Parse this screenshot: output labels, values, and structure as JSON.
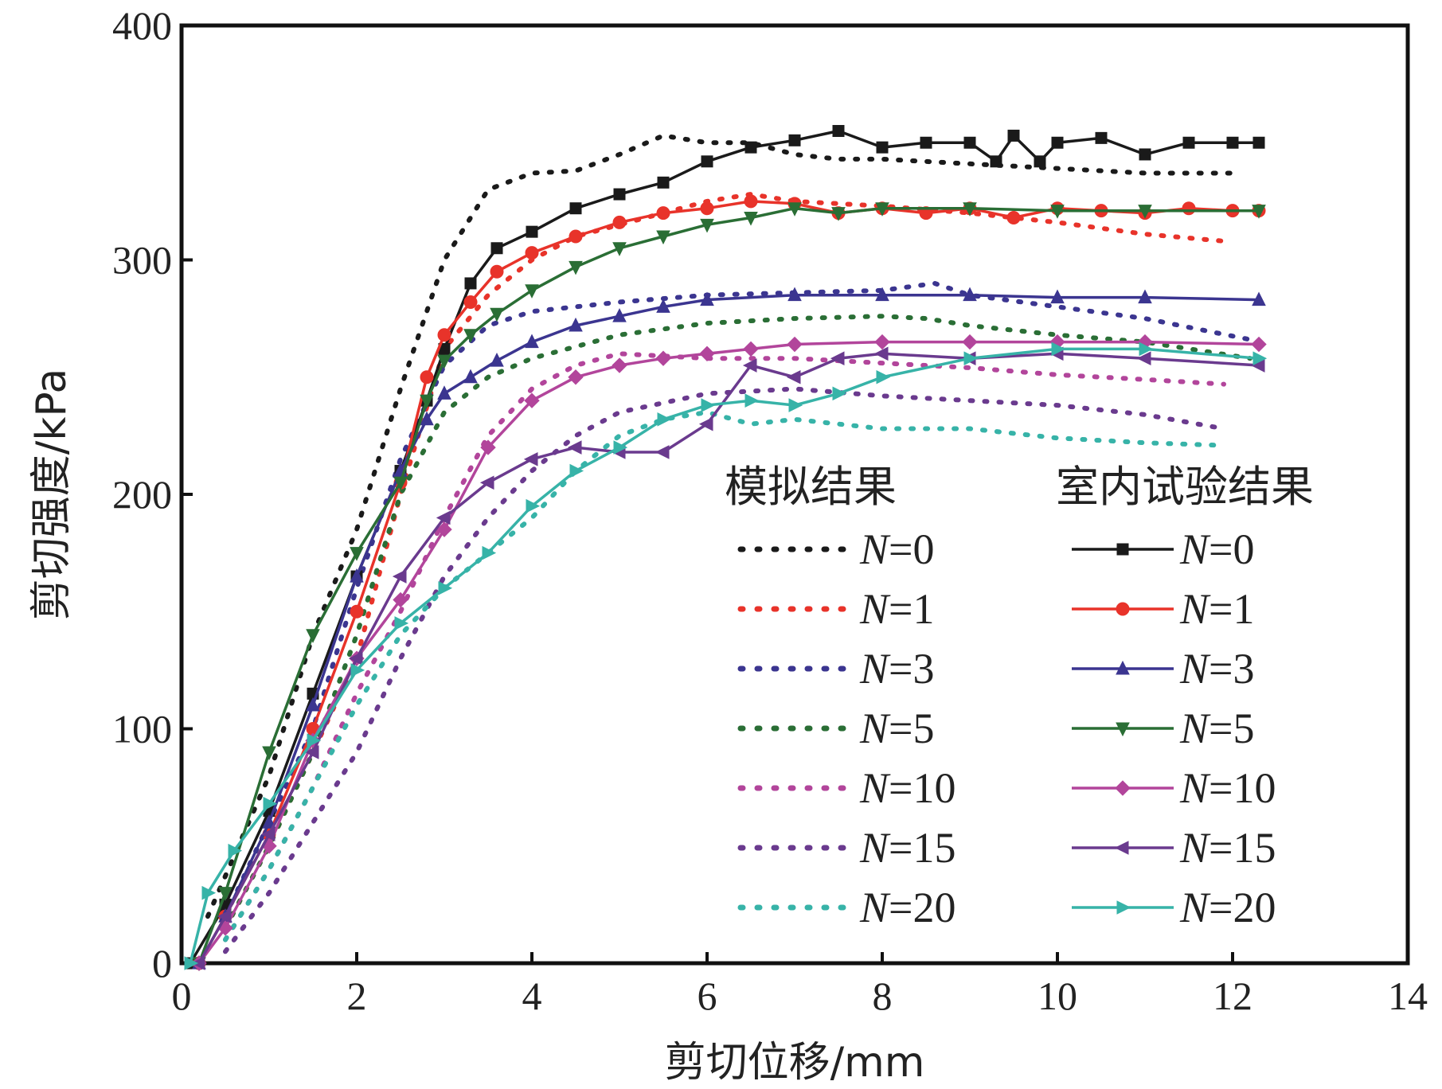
{
  "chart_data": {
    "type": "line",
    "title": "",
    "xlabel": "剪切位移/mm",
    "ylabel": "剪切强度/kPa",
    "xlim": [
      0,
      14
    ],
    "ylim": [
      0,
      400
    ],
    "xticks": [
      "0",
      "2",
      "4",
      "6",
      "8",
      "10",
      "12",
      "14"
    ],
    "yticks": [
      "0",
      "100",
      "200",
      "300",
      "400"
    ],
    "grid": false,
    "legend": {
      "position": "bottom-right",
      "sim_header": "模拟结果",
      "exp_header": "室内试验结果"
    },
    "colors": {
      "N=0": "#1a1a1a",
      "N=1": "#e8332a",
      "N=3": "#3b3590",
      "N=5": "#2a6e35",
      "N=10": "#b2459b",
      "N=15": "#6a3a8e",
      "N=20": "#37b3a8"
    },
    "series": [
      {
        "name": "N=0",
        "kind": "simulation",
        "marker": "none",
        "x": [
          0.3,
          1.0,
          1.5,
          2.0,
          2.5,
          3.0,
          3.5,
          4.0,
          4.5,
          5.0,
          5.5,
          6.0,
          6.5,
          7.0,
          7.5,
          8.0,
          9.0,
          10.0,
          11.0,
          12.0
        ],
        "y": [
          20,
          80,
          140,
          185,
          245,
          300,
          330,
          337,
          338,
          345,
          353,
          350,
          350,
          345,
          343,
          343,
          341,
          339,
          337,
          337
        ]
      },
      {
        "name": "N=1",
        "kind": "simulation",
        "marker": "none",
        "x": [
          0.5,
          1.0,
          1.5,
          2.0,
          2.5,
          3.0,
          3.5,
          4.0,
          4.5,
          5.0,
          5.5,
          6.0,
          6.5,
          7.0,
          8.0,
          9.0,
          10.0,
          11.0,
          11.9
        ],
        "y": [
          15,
          50,
          90,
          130,
          200,
          262,
          285,
          300,
          310,
          315,
          320,
          325,
          328,
          325,
          323,
          320,
          316,
          311,
          308
        ]
      },
      {
        "name": "N=3",
        "kind": "simulation",
        "marker": "none",
        "x": [
          0.5,
          1.0,
          1.5,
          2.0,
          2.5,
          3.0,
          3.5,
          4.0,
          5.0,
          6.0,
          7.0,
          8.0,
          8.6,
          9.0,
          10.0,
          11.0,
          12.2
        ],
        "y": [
          20,
          60,
          100,
          160,
          215,
          255,
          272,
          278,
          282,
          285,
          286,
          287,
          290,
          285,
          280,
          275,
          266
        ]
      },
      {
        "name": "N=5",
        "kind": "simulation",
        "marker": "none",
        "x": [
          0.5,
          1.0,
          1.5,
          2.0,
          2.5,
          3.0,
          3.5,
          4.0,
          5.0,
          6.0,
          7.0,
          8.0,
          8.5,
          9.0,
          10.0,
          11.0,
          12.2
        ],
        "y": [
          15,
          50,
          90,
          140,
          200,
          235,
          250,
          258,
          268,
          273,
          275,
          276,
          275,
          272,
          268,
          265,
          258
        ]
      },
      {
        "name": "N=10",
        "kind": "simulation",
        "marker": "none",
        "x": [
          0.5,
          1.0,
          1.5,
          2.0,
          2.5,
          3.0,
          3.5,
          4.0,
          4.5,
          5.0,
          6.0,
          7.0,
          8.0,
          9.0,
          10.0,
          11.0,
          11.9
        ],
        "y": [
          10,
          40,
          75,
          115,
          150,
          190,
          225,
          245,
          255,
          260,
          258,
          258,
          256,
          254,
          251,
          249,
          247
        ]
      },
      {
        "name": "N=15",
        "kind": "simulation",
        "marker": "none",
        "x": [
          0.5,
          1.0,
          1.5,
          2.0,
          2.5,
          3.0,
          3.5,
          4.0,
          4.5,
          5.0,
          6.0,
          7.0,
          8.0,
          9.0,
          10.0,
          11.0,
          11.9
        ],
        "y": [
          5,
          30,
          60,
          90,
          130,
          165,
          190,
          210,
          225,
          235,
          243,
          245,
          242,
          240,
          238,
          234,
          228
        ]
      },
      {
        "name": "N=20",
        "kind": "simulation",
        "marker": "none",
        "x": [
          0.5,
          1.0,
          1.5,
          2.0,
          2.5,
          3.0,
          3.5,
          4.0,
          4.5,
          5.0,
          5.5,
          6.0,
          6.5,
          7.0,
          8.0,
          9.0,
          10.0,
          11.0,
          11.8
        ],
        "y": [
          10,
          40,
          75,
          110,
          140,
          160,
          175,
          190,
          210,
          225,
          232,
          235,
          230,
          232,
          228,
          228,
          224,
          222,
          221
        ]
      },
      {
        "name": "N=0",
        "kind": "experiment",
        "marker": "square",
        "x": [
          0.1,
          0.5,
          1.0,
          1.5,
          2.0,
          2.5,
          2.8,
          3.0,
          3.3,
          3.6,
          4.0,
          4.5,
          5.0,
          5.5,
          6.0,
          6.5,
          7.0,
          7.5,
          8.0,
          8.5,
          9.0,
          9.3,
          9.5,
          9.8,
          10.0,
          10.5,
          11.0,
          11.5,
          12.0,
          12.3
        ],
        "y": [
          0,
          25,
          65,
          115,
          165,
          210,
          240,
          262,
          290,
          305,
          312,
          322,
          328,
          333,
          342,
          348,
          351,
          355,
          348,
          350,
          350,
          342,
          353,
          342,
          350,
          352,
          345,
          350,
          350,
          350
        ]
      },
      {
        "name": "N=1",
        "kind": "experiment",
        "marker": "circle",
        "x": [
          0.2,
          0.5,
          1.0,
          1.5,
          2.0,
          2.5,
          2.8,
          3.0,
          3.3,
          3.6,
          4.0,
          4.5,
          5.0,
          5.5,
          6.0,
          6.5,
          7.0,
          7.5,
          8.0,
          8.5,
          9.0,
          9.5,
          10.0,
          10.5,
          11.0,
          11.5,
          12.0,
          12.3
        ],
        "y": [
          0,
          20,
          55,
          100,
          150,
          205,
          250,
          268,
          282,
          295,
          303,
          310,
          316,
          320,
          322,
          325,
          324,
          320,
          322,
          320,
          322,
          318,
          322,
          321,
          320,
          322,
          321,
          321
        ]
      },
      {
        "name": "N=3",
        "kind": "experiment",
        "marker": "triangle-up",
        "x": [
          0.2,
          0.5,
          1.0,
          1.5,
          2.0,
          2.5,
          2.8,
          3.0,
          3.3,
          3.6,
          4.0,
          4.5,
          5.0,
          5.5,
          6.0,
          7.0,
          8.0,
          9.0,
          10.0,
          11.0,
          12.3
        ],
        "y": [
          0,
          20,
          60,
          110,
          165,
          210,
          232,
          243,
          250,
          257,
          265,
          272,
          276,
          280,
          283,
          285,
          285,
          285,
          284,
          284,
          283
        ]
      },
      {
        "name": "N=5",
        "kind": "experiment",
        "marker": "triangle-down",
        "x": [
          0.2,
          0.5,
          1.0,
          1.5,
          2.0,
          2.5,
          2.8,
          3.0,
          3.3,
          3.6,
          4.0,
          4.5,
          5.0,
          5.5,
          6.0,
          6.5,
          7.0,
          7.5,
          8.0,
          9.0,
          10.0,
          11.0,
          12.3
        ],
        "y": [
          0,
          30,
          90,
          140,
          175,
          205,
          240,
          257,
          268,
          277,
          287,
          297,
          305,
          310,
          315,
          318,
          322,
          320,
          322,
          322,
          321,
          321,
          321
        ]
      },
      {
        "name": "N=10",
        "kind": "experiment",
        "marker": "diamond",
        "x": [
          0.2,
          0.5,
          1.0,
          1.5,
          2.0,
          2.5,
          3.0,
          3.5,
          4.0,
          4.5,
          5.0,
          5.5,
          6.0,
          6.5,
          7.0,
          8.0,
          9.0,
          10.0,
          11.0,
          12.3
        ],
        "y": [
          0,
          15,
          50,
          95,
          130,
          155,
          185,
          220,
          240,
          250,
          255,
          258,
          260,
          262,
          264,
          265,
          265,
          265,
          265,
          264
        ]
      },
      {
        "name": "N=15",
        "kind": "experiment",
        "marker": "triangle-left",
        "x": [
          0.2,
          0.5,
          1.0,
          1.5,
          2.0,
          2.5,
          3.0,
          3.5,
          4.0,
          4.5,
          5.0,
          5.5,
          6.0,
          6.5,
          7.0,
          7.5,
          8.0,
          9.0,
          10.0,
          11.0,
          12.3
        ],
        "y": [
          0,
          20,
          55,
          90,
          130,
          165,
          190,
          205,
          215,
          220,
          218,
          218,
          230,
          255,
          250,
          258,
          260,
          258,
          260,
          258,
          255
        ]
      },
      {
        "name": "N=20",
        "kind": "experiment",
        "marker": "triangle-right",
        "x": [
          0.1,
          0.3,
          0.6,
          1.0,
          1.5,
          2.0,
          2.5,
          3.0,
          3.5,
          4.0,
          4.5,
          5.0,
          5.5,
          6.0,
          6.5,
          7.0,
          7.5,
          8.0,
          9.0,
          10.0,
          11.0,
          12.3
        ],
        "y": [
          0,
          30,
          48,
          68,
          95,
          125,
          145,
          160,
          175,
          195,
          210,
          220,
          232,
          238,
          240,
          238,
          243,
          250,
          258,
          262,
          262,
          258
        ]
      }
    ]
  }
}
